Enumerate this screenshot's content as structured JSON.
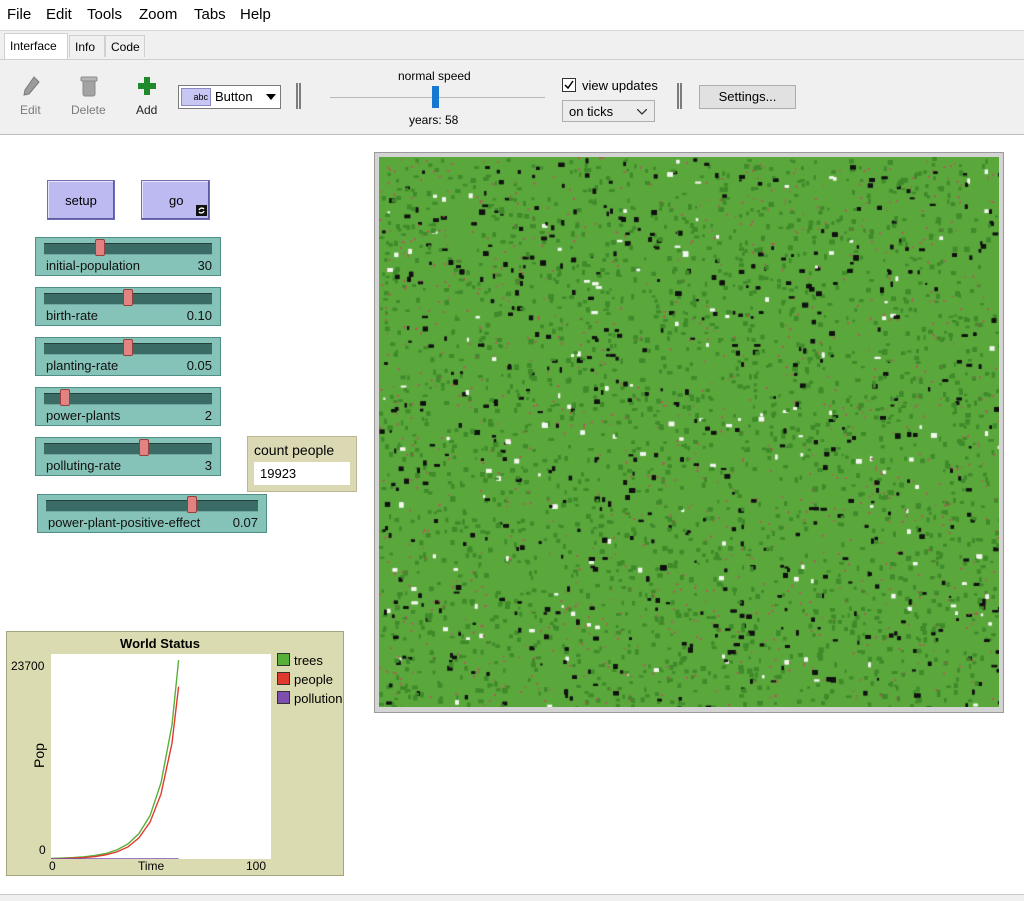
{
  "menubar": {
    "items": [
      "File",
      "Edit",
      "Tools",
      "Zoom",
      "Tabs",
      "Help"
    ]
  },
  "tabs": [
    "Interface",
    "Info",
    "Code"
  ],
  "toolbar": {
    "edit_label": "Edit",
    "delete_label": "Delete",
    "add_label": "Add",
    "widget_type": "Button",
    "speed_label": "normal speed",
    "ticks_label": "years: 58",
    "view_updates_label": "view updates",
    "update_mode": "on ticks",
    "settings_label": "Settings..."
  },
  "buttons": {
    "setup": "setup",
    "go": "go"
  },
  "sliders": [
    {
      "name": "initial-population",
      "value": "30",
      "position": 0.32
    },
    {
      "name": "birth-rate",
      "value": "0.10",
      "position": 0.5
    },
    {
      "name": "planting-rate",
      "value": "0.05",
      "position": 0.5
    },
    {
      "name": "power-plants",
      "value": "2",
      "position": 0.1
    },
    {
      "name": "polluting-rate",
      "value": "3",
      "position": 0.6
    },
    {
      "name": "power-plant-positive-effect",
      "value": "0.07",
      "position": 0.7
    }
  ],
  "monitor": {
    "label": "count people",
    "value": "19923"
  },
  "plot": {
    "title": "World Status",
    "ylabel": "Pop",
    "xlabel": "Time",
    "ymax_label": "23700",
    "ymin_label": "0",
    "xmin_label": "0",
    "xmax_label": "100",
    "legend": [
      {
        "name": "trees",
        "color": "#59b039"
      },
      {
        "name": "people",
        "color": "#e03a2f"
      },
      {
        "name": "pollution",
        "color": "#7f4fb0"
      }
    ]
  },
  "chart_data": {
    "type": "line",
    "title": "World Status",
    "xlabel": "Time",
    "ylabel": "Pop",
    "xlim": [
      0,
      100
    ],
    "ylim": [
      0,
      23700
    ],
    "series": [
      {
        "name": "trees",
        "color": "#59b039",
        "x": [
          0,
          5,
          10,
          15,
          20,
          25,
          30,
          35,
          40,
          45,
          50,
          55,
          58
        ],
        "y": [
          60,
          100,
          160,
          250,
          400,
          640,
          1050,
          1750,
          2950,
          5000,
          8800,
          15500,
          23000
        ]
      },
      {
        "name": "people",
        "color": "#e03a2f",
        "x": [
          0,
          5,
          10,
          15,
          20,
          25,
          30,
          35,
          40,
          45,
          50,
          55,
          58
        ],
        "y": [
          30,
          50,
          90,
          160,
          280,
          480,
          820,
          1400,
          2450,
          4250,
          7500,
          13400,
          19923
        ]
      },
      {
        "name": "pollution",
        "color": "#7f4fb0",
        "x": [
          0,
          10,
          20,
          30,
          40,
          50,
          58
        ],
        "y": [
          0,
          0,
          0,
          0,
          0,
          0,
          0
        ]
      }
    ]
  },
  "colors": {
    "button": "#bcbaf0",
    "slider": "#85c2b7",
    "monitor": "#dbd9b4",
    "plot": "#dbdbb2",
    "patch_green": "#5aa83c"
  }
}
